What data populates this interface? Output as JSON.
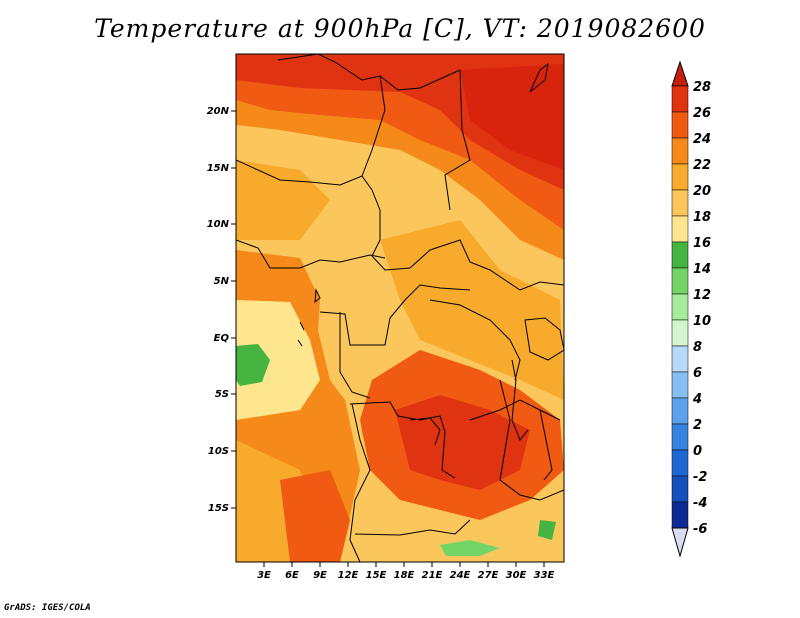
{
  "title": "Temperature at 900hPa [C], VT: 2019082600",
  "credit": "GrADS: IGES/COLA",
  "map": {
    "lat_labels": [
      "20N",
      "15N",
      "10N",
      "5N",
      "EQ",
      "5S",
      "10S",
      "15S"
    ],
    "lon_labels": [
      "3E",
      "6E",
      "9E",
      "12E",
      "15E",
      "18E",
      "21E",
      "24E",
      "27E",
      "30E",
      "33E"
    ]
  },
  "colorbar": {
    "labels": [
      "28",
      "26",
      "24",
      "22",
      "20",
      "18",
      "16",
      "14",
      "12",
      "10",
      "8",
      "6",
      "4",
      "2",
      "0",
      "-2",
      "-4",
      "-6"
    ],
    "colors": {
      "top_arrow": "#c71f0e",
      "s26_28": "#e03312",
      "s24_26": "#f05a12",
      "s22_24": "#f58a1a",
      "s20_22": "#f8aa2c",
      "s18_20": "#fbc65c",
      "s16_18": "#fde68e",
      "s14_16": "#46b441",
      "s12_14": "#72d565",
      "s10_12": "#a6ec9c",
      "s8_10": "#d4f6cf",
      "s6_8": "#b5d9f7",
      "s4_6": "#88bff2",
      "s2_4": "#5ca2ec",
      "s0_2": "#3584e0",
      "sm2_0": "#1f68d2",
      "sm4_m2": "#154fb9",
      "sm6_m4": "#0b2a93",
      "bottom_arrow": "#dadcf4"
    }
  }
}
